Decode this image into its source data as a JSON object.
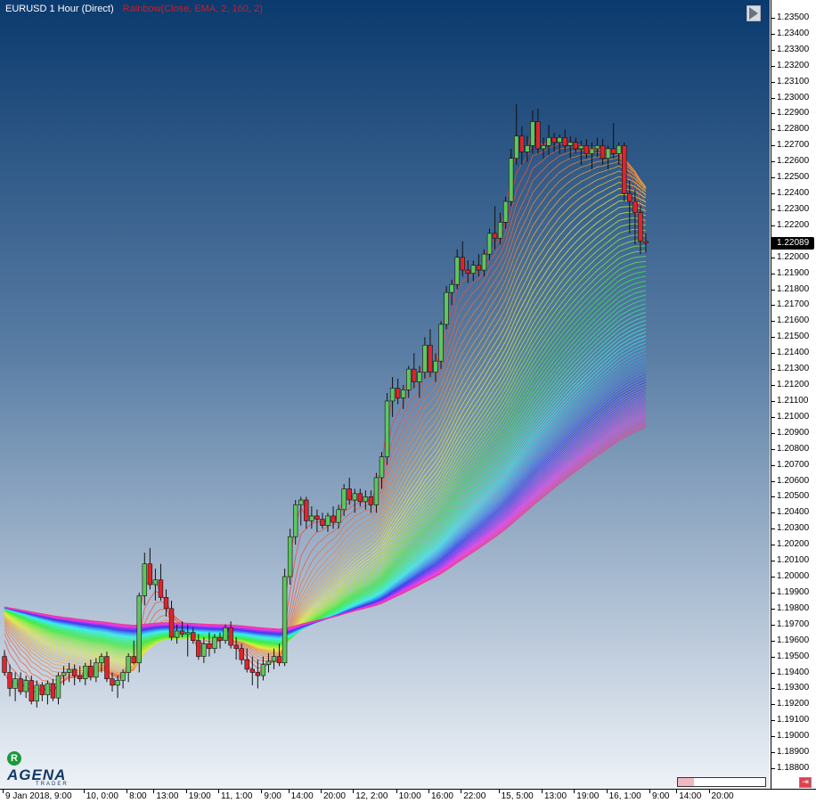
{
  "header": {
    "symbol": "EURUSD 1 Hour (Direct)",
    "indicator": "Rainbow(Close, EMA, 2, 160, 2)"
  },
  "current_price": "1.22089",
  "logo": {
    "badge": "R",
    "name": "AGENA",
    "sub": "TRADER"
  },
  "buttons": {
    "close_glyph": "⇥"
  },
  "colors": {
    "bg_top": "#0b3a6e",
    "bg_bottom": "#eef2f7",
    "bull": "#5ec65e",
    "bear": "#e0242c"
  },
  "chart_data": {
    "type": "candlestick",
    "title": "",
    "ylim": [
      1.1875,
      1.2355
    ],
    "y_ticks": [
      "1.23500",
      "1.23400",
      "1.23300",
      "1.23200",
      "1.23100",
      "1.23000",
      "1.22900",
      "1.22800",
      "1.22700",
      "1.22600",
      "1.22500",
      "1.22400",
      "1.22300",
      "1.22200",
      "1.22100",
      "1.22000",
      "1.21900",
      "1.21800",
      "1.21700",
      "1.21600",
      "1.21500",
      "1.21400",
      "1.21300",
      "1.21200",
      "1.21100",
      "1.21000",
      "1.20900",
      "1.20800",
      "1.20700",
      "1.20600",
      "1.20500",
      "1.20400",
      "1.20300",
      "1.20200",
      "1.20100",
      "1.20000",
      "1.19900",
      "1.19800",
      "1.19700",
      "1.19600",
      "1.19500",
      "1.19400",
      "1.19300",
      "1.19200",
      "1.19100",
      "1.19000",
      "1.18900",
      "1.18800"
    ],
    "x_ticks": [
      {
        "label": "9 Jan 2018, 9:00",
        "bar": 0
      },
      {
        "label": "10, 0:00",
        "bar": 15
      },
      {
        "label": "8:00",
        "bar": 23
      },
      {
        "label": "13:00",
        "bar": 28
      },
      {
        "label": "19:00",
        "bar": 34
      },
      {
        "label": "11, 1:00",
        "bar": 40
      },
      {
        "label": "9:00",
        "bar": 48
      },
      {
        "label": "14:00",
        "bar": 53
      },
      {
        "label": "20:00",
        "bar": 59
      },
      {
        "label": "12, 2:00",
        "bar": 65
      },
      {
        "label": "10:00",
        "bar": 73
      },
      {
        "label": "16:00",
        "bar": 79
      },
      {
        "label": "22:00",
        "bar": 85
      },
      {
        "label": "15, 5:00",
        "bar": 92
      },
      {
        "label": "13:00",
        "bar": 100
      },
      {
        "label": "19:00",
        "bar": 106
      },
      {
        "label": "16, 1:00",
        "bar": 112
      },
      {
        "label": "9:00",
        "bar": 120
      },
      {
        "label": "14:00",
        "bar": 125
      },
      {
        "label": "20:00",
        "bar": 131
      }
    ],
    "rainbow": {
      "type": "EMA",
      "min_period": 2,
      "max_period": 160,
      "step": 2
    },
    "last_close": 1.22089,
    "ohlc": [
      [
        1.195,
        1.1954,
        1.1938,
        1.194
      ],
      [
        1.194,
        1.1945,
        1.1925,
        1.193
      ],
      [
        1.193,
        1.194,
        1.1922,
        1.1936
      ],
      [
        1.1936,
        1.194,
        1.1926,
        1.1928
      ],
      [
        1.1928,
        1.1938,
        1.1924,
        1.1935
      ],
      [
        1.1935,
        1.1938,
        1.192,
        1.1922
      ],
      [
        1.1922,
        1.1935,
        1.1918,
        1.1932
      ],
      [
        1.1932,
        1.1934,
        1.1922,
        1.1926
      ],
      [
        1.1926,
        1.1935,
        1.192,
        1.1933
      ],
      [
        1.1933,
        1.1936,
        1.1922,
        1.1924
      ],
      [
        1.1924,
        1.194,
        1.192,
        1.1938
      ],
      [
        1.1938,
        1.1944,
        1.1932,
        1.194
      ],
      [
        1.194,
        1.1946,
        1.1934,
        1.1942
      ],
      [
        1.1942,
        1.1945,
        1.1932,
        1.1938
      ],
      [
        1.1938,
        1.1944,
        1.1934,
        1.1936
      ],
      [
        1.1936,
        1.1946,
        1.1932,
        1.1944
      ],
      [
        1.1944,
        1.1948,
        1.1935,
        1.1937
      ],
      [
        1.1937,
        1.1949,
        1.1934,
        1.1946
      ],
      [
        1.1946,
        1.1952,
        1.194,
        1.195
      ],
      [
        1.195,
        1.1953,
        1.1934,
        1.1936
      ],
      [
        1.1936,
        1.194,
        1.1928,
        1.1932
      ],
      [
        1.1932,
        1.1938,
        1.1924,
        1.1935
      ],
      [
        1.1935,
        1.1942,
        1.193,
        1.194
      ],
      [
        1.194,
        1.1952,
        1.1934,
        1.195
      ],
      [
        1.195,
        1.196,
        1.1945,
        1.1946
      ],
      [
        1.1946,
        1.199,
        1.194,
        1.1988
      ],
      [
        1.1988,
        1.2015,
        1.1982,
        1.2008
      ],
      [
        1.2008,
        1.2018,
        1.1992,
        1.1995
      ],
      [
        1.1995,
        1.2005,
        1.1985,
        1.1998
      ],
      [
        1.1998,
        1.2008,
        1.1985,
        1.1987
      ],
      [
        1.1987,
        1.1992,
        1.1975,
        1.198
      ],
      [
        1.198,
        1.1985,
        1.196,
        1.1962
      ],
      [
        1.1962,
        1.197,
        1.1958,
        1.1966
      ],
      [
        1.1966,
        1.1972,
        1.1962,
        1.1964
      ],
      [
        1.1964,
        1.197,
        1.195,
        1.1965
      ],
      [
        1.1965,
        1.1968,
        1.1958,
        1.196
      ],
      [
        1.196,
        1.1964,
        1.1948,
        1.195
      ],
      [
        1.195,
        1.1962,
        1.1946,
        1.1958
      ],
      [
        1.1958,
        1.1965,
        1.195,
        1.1955
      ],
      [
        1.1955,
        1.1964,
        1.1952,
        1.1962
      ],
      [
        1.1962,
        1.1965,
        1.1955,
        1.196
      ],
      [
        1.196,
        1.197,
        1.1958,
        1.1968
      ],
      [
        1.1968,
        1.1972,
        1.1955,
        1.1957
      ],
      [
        1.1957,
        1.1962,
        1.1948,
        1.1955
      ],
      [
        1.1955,
        1.1958,
        1.1945,
        1.1948
      ],
      [
        1.1948,
        1.1955,
        1.194,
        1.1942
      ],
      [
        1.1942,
        1.195,
        1.1932,
        1.194
      ],
      [
        1.194,
        1.1948,
        1.193,
        1.1938
      ],
      [
        1.1938,
        1.195,
        1.1935,
        1.1945
      ],
      [
        1.1945,
        1.1952,
        1.194,
        1.1947
      ],
      [
        1.1947,
        1.1955,
        1.1942,
        1.195
      ],
      [
        1.195,
        1.1958,
        1.1944,
        1.1946
      ],
      [
        1.1946,
        1.2005,
        1.1944,
        1.2
      ],
      [
        1.2,
        1.203,
        1.1995,
        1.2025
      ],
      [
        1.2025,
        1.2048,
        1.202,
        1.2045
      ],
      [
        1.2045,
        1.205,
        1.2032,
        1.2048
      ],
      [
        1.2048,
        1.205,
        1.203,
        1.2035
      ],
      [
        1.2035,
        1.2044,
        1.203,
        1.2038
      ],
      [
        1.2038,
        1.2042,
        1.2028,
        1.2036
      ],
      [
        1.2036,
        1.204,
        1.203,
        1.2032
      ],
      [
        1.2032,
        1.204,
        1.2028,
        1.2038
      ],
      [
        1.2038,
        1.2044,
        1.203,
        1.2034
      ],
      [
        1.2034,
        1.2045,
        1.203,
        1.2042
      ],
      [
        1.2042,
        1.2058,
        1.2038,
        1.2055
      ],
      [
        1.2055,
        1.2062,
        1.2045,
        1.2048
      ],
      [
        1.2048,
        1.2055,
        1.204,
        1.2052
      ],
      [
        1.2052,
        1.2055,
        1.2044,
        1.2047
      ],
      [
        1.2047,
        1.2054,
        1.2042,
        1.205
      ],
      [
        1.205,
        1.2054,
        1.204,
        1.2045
      ],
      [
        1.2045,
        1.2065,
        1.204,
        1.2062
      ],
      [
        1.2062,
        1.2078,
        1.2055,
        1.2075
      ],
      [
        1.2075,
        1.2115,
        1.207,
        1.211
      ],
      [
        1.211,
        1.2125,
        1.21,
        1.2118
      ],
      [
        1.2118,
        1.2124,
        1.2108,
        1.2112
      ],
      [
        1.2112,
        1.212,
        1.2105,
        1.2117
      ],
      [
        1.2117,
        1.2132,
        1.2112,
        1.213
      ],
      [
        1.213,
        1.214,
        1.2118,
        1.2122
      ],
      [
        1.2122,
        1.2132,
        1.2112,
        1.2128
      ],
      [
        1.2128,
        1.215,
        1.2124,
        1.2145
      ],
      [
        1.2145,
        1.2155,
        1.2125,
        1.2128
      ],
      [
        1.2128,
        1.214,
        1.2122,
        1.2135
      ],
      [
        1.2135,
        1.216,
        1.213,
        1.2158
      ],
      [
        1.2158,
        1.2182,
        1.2155,
        1.2178
      ],
      [
        1.2178,
        1.2186,
        1.217,
        1.2183
      ],
      [
        1.2183,
        1.2205,
        1.218,
        1.22
      ],
      [
        1.22,
        1.221,
        1.2188,
        1.2192
      ],
      [
        1.2192,
        1.2198,
        1.2184,
        1.219
      ],
      [
        1.219,
        1.2198,
        1.2185,
        1.2195
      ],
      [
        1.2195,
        1.2202,
        1.2188,
        1.2192
      ],
      [
        1.2192,
        1.2205,
        1.2188,
        1.2202
      ],
      [
        1.2202,
        1.2218,
        1.2198,
        1.2215
      ],
      [
        1.2215,
        1.2232,
        1.2205,
        1.2212
      ],
      [
        1.2212,
        1.2228,
        1.2208,
        1.2222
      ],
      [
        1.2222,
        1.2238,
        1.2218,
        1.2235
      ],
      [
        1.2235,
        1.2268,
        1.2232,
        1.2262
      ],
      [
        1.2262,
        1.2296,
        1.2258,
        1.2276
      ],
      [
        1.2276,
        1.2282,
        1.2258,
        1.2266
      ],
      [
        1.2266,
        1.2276,
        1.226,
        1.227
      ],
      [
        1.227,
        1.2292,
        1.2265,
        1.2285
      ],
      [
        1.2285,
        1.2293,
        1.2265,
        1.2268
      ],
      [
        1.2268,
        1.2275,
        1.2262,
        1.227
      ],
      [
        1.227,
        1.2283,
        1.2264,
        1.2275
      ],
      [
        1.2275,
        1.2278,
        1.2266,
        1.2272
      ],
      [
        1.2272,
        1.2277,
        1.2265,
        1.2275
      ],
      [
        1.2275,
        1.228,
        1.2266,
        1.227
      ],
      [
        1.227,
        1.2276,
        1.2262,
        1.2272
      ],
      [
        1.2272,
        1.2275,
        1.2265,
        1.2268
      ],
      [
        1.2268,
        1.2273,
        1.2258,
        1.227
      ],
      [
        1.227,
        1.2274,
        1.2262,
        1.2265
      ],
      [
        1.2265,
        1.2272,
        1.2255,
        1.2268
      ],
      [
        1.2268,
        1.2275,
        1.2263,
        1.227
      ],
      [
        1.227,
        1.2274,
        1.2258,
        1.2262
      ],
      [
        1.2262,
        1.227,
        1.2255,
        1.2268
      ],
      [
        1.2268,
        1.2284,
        1.2262,
        1.2265
      ],
      [
        1.2265,
        1.2272,
        1.2258,
        1.227
      ],
      [
        1.227,
        1.2272,
        1.2235,
        1.224
      ],
      [
        1.224,
        1.2248,
        1.2215,
        1.2235
      ],
      [
        1.2235,
        1.2242,
        1.2208,
        1.2228
      ],
      [
        1.2228,
        1.2232,
        1.2202,
        1.221
      ],
      [
        1.221,
        1.2215,
        1.2203,
        1.2209
      ]
    ]
  }
}
